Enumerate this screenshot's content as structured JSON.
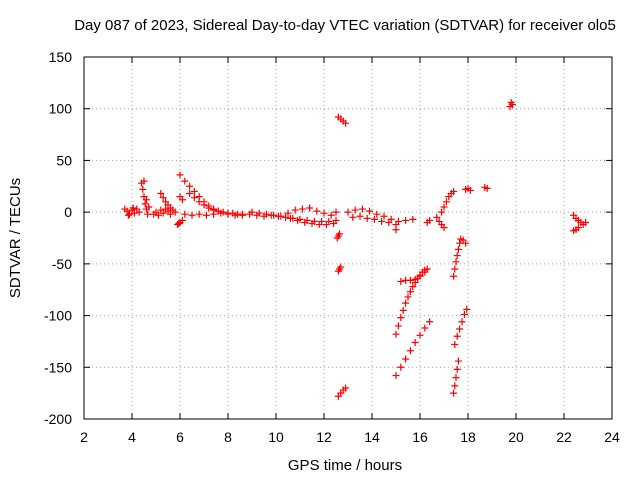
{
  "chart_data": {
    "type": "scatter",
    "title": "Day 087 of 2023, Sidereal Day-to-day VTEC variation (SDTVAR) for receiver olo5",
    "xlabel": "GPS time / hours",
    "ylabel": "SDTVAR / TECUs",
    "xlim": [
      2,
      24
    ],
    "ylim": [
      -200,
      150
    ],
    "xticks": [
      "2",
      "4",
      "6",
      "8",
      "10",
      "12",
      "14",
      "16",
      "18",
      "20",
      "22",
      "24"
    ],
    "yticks": [
      "150",
      "100",
      "50",
      "0",
      "-50",
      "-100",
      "-150",
      "-200"
    ],
    "grid": true,
    "marker": "+",
    "color": "#ff0000",
    "series": [
      {
        "name": "cluster-3.8",
        "points": [
          [
            3.7,
            3
          ],
          [
            3.8,
            1
          ],
          [
            3.9,
            -2
          ],
          [
            4.0,
            2
          ],
          [
            4.1,
            -1
          ],
          [
            4.2,
            3
          ],
          [
            4.3,
            0
          ],
          [
            3.85,
            -3
          ],
          [
            4.05,
            4
          ]
        ]
      },
      {
        "name": "cluster-4.5",
        "points": [
          [
            4.4,
            28
          ],
          [
            4.45,
            22
          ],
          [
            4.5,
            15
          ],
          [
            4.55,
            8
          ],
          [
            4.6,
            3
          ],
          [
            4.65,
            -2
          ],
          [
            4.5,
            30
          ],
          [
            4.6,
            12
          ],
          [
            4.7,
            5
          ]
        ]
      },
      {
        "name": "cluster-5.0",
        "points": [
          [
            4.9,
            -2
          ],
          [
            5.0,
            0
          ],
          [
            5.1,
            -3
          ],
          [
            5.2,
            2
          ],
          [
            5.3,
            -1
          ],
          [
            5.4,
            3
          ],
          [
            5.5,
            1
          ],
          [
            5.6,
            -2
          ]
        ]
      },
      {
        "name": "cluster-5.3",
        "points": [
          [
            5.2,
            18
          ],
          [
            5.3,
            14
          ],
          [
            5.4,
            10
          ],
          [
            5.5,
            7
          ],
          [
            5.6,
            4
          ],
          [
            5.7,
            2
          ],
          [
            5.8,
            0
          ]
        ]
      },
      {
        "name": "cluster-5.9",
        "points": [
          [
            5.9,
            -12
          ],
          [
            6.0,
            -10
          ],
          [
            6.1,
            -8
          ],
          [
            6.0,
            15
          ],
          [
            6.1,
            12
          ],
          [
            5.95,
            -11
          ]
        ]
      },
      {
        "name": "arc-6.0",
        "points": [
          [
            6.0,
            36
          ],
          [
            6.2,
            30
          ],
          [
            6.4,
            25
          ],
          [
            6.6,
            20
          ],
          [
            6.8,
            15
          ],
          [
            7.0,
            10
          ],
          [
            7.2,
            6
          ],
          [
            7.4,
            3
          ],
          [
            7.6,
            1
          ],
          [
            7.8,
            0
          ],
          [
            8.0,
            -1
          ],
          [
            8.2,
            -1
          ],
          [
            8.4,
            -2
          ],
          [
            8.6,
            -2
          ]
        ]
      },
      {
        "name": "arc-6.5",
        "points": [
          [
            6.4,
            18
          ],
          [
            6.6,
            14
          ],
          [
            6.8,
            10
          ],
          [
            7.0,
            7
          ],
          [
            7.2,
            4
          ],
          [
            7.4,
            2
          ],
          [
            7.6,
            1
          ]
        ]
      },
      {
        "name": "band-6-12",
        "points": [
          [
            6.2,
            -2
          ],
          [
            6.5,
            -3
          ],
          [
            6.8,
            -2
          ],
          [
            7.1,
            -3
          ],
          [
            7.4,
            -2
          ],
          [
            7.7,
            -1
          ],
          [
            8.0,
            -2
          ],
          [
            8.3,
            -3
          ],
          [
            8.6,
            -3
          ],
          [
            8.9,
            -2
          ],
          [
            9.2,
            -3
          ],
          [
            9.5,
            -4
          ],
          [
            9.8,
            -3
          ],
          [
            10.1,
            -4
          ],
          [
            10.4,
            -5
          ],
          [
            10.7,
            -6
          ],
          [
            11.0,
            -7
          ],
          [
            11.3,
            -8
          ],
          [
            11.6,
            -9
          ],
          [
            11.9,
            -9
          ],
          [
            12.2,
            -9
          ],
          [
            12.5,
            -8
          ]
        ]
      },
      {
        "name": "band-9-11",
        "points": [
          [
            9.0,
            0
          ],
          [
            9.3,
            -1
          ],
          [
            9.6,
            -2
          ],
          [
            9.9,
            -3
          ],
          [
            10.2,
            -4
          ],
          [
            10.5,
            -1
          ],
          [
            10.8,
            2
          ],
          [
            11.1,
            3
          ],
          [
            11.4,
            4
          ],
          [
            11.7,
            1
          ],
          [
            12.0,
            -1
          ],
          [
            12.3,
            -3
          ],
          [
            12.5,
            0
          ]
        ]
      },
      {
        "name": "band-10-12-low",
        "points": [
          [
            10.6,
            -6
          ],
          [
            10.9,
            -8
          ],
          [
            11.2,
            -10
          ],
          [
            11.5,
            -11
          ],
          [
            11.8,
            -12
          ],
          [
            12.1,
            -12
          ],
          [
            12.4,
            -11
          ]
        ]
      },
      {
        "name": "sub-12.6",
        "points": [
          [
            12.55,
            -25
          ],
          [
            12.6,
            -23
          ],
          [
            12.65,
            -21
          ],
          [
            12.6,
            -57
          ],
          [
            12.65,
            -55
          ],
          [
            12.7,
            -53
          ],
          [
            12.6,
            -178
          ],
          [
            12.7,
            -175
          ],
          [
            12.8,
            -172
          ],
          [
            12.9,
            -170
          ]
        ]
      },
      {
        "name": "high-12.8",
        "points": [
          [
            12.6,
            92
          ],
          [
            12.7,
            90
          ],
          [
            12.8,
            88
          ],
          [
            12.9,
            86
          ]
        ]
      },
      {
        "name": "band-13-15",
        "points": [
          [
            13.0,
            0
          ],
          [
            13.3,
            2
          ],
          [
            13.6,
            3
          ],
          [
            13.9,
            1
          ],
          [
            14.2,
            -2
          ],
          [
            14.5,
            -4
          ],
          [
            14.8,
            -7
          ],
          [
            15.1,
            -9
          ],
          [
            15.4,
            -8
          ],
          [
            15.7,
            -7
          ],
          [
            13.2,
            -5
          ],
          [
            13.5,
            -4
          ],
          [
            13.8,
            -6
          ],
          [
            14.1,
            -7
          ],
          [
            14.4,
            -9
          ],
          [
            14.7,
            -10
          ],
          [
            15.0,
            -12
          ],
          [
            15.0,
            -17
          ]
        ]
      },
      {
        "name": "steep-15-a",
        "points": [
          [
            15.0,
            -118
          ],
          [
            15.1,
            -110
          ],
          [
            15.2,
            -102
          ],
          [
            15.3,
            -95
          ],
          [
            15.4,
            -88
          ],
          [
            15.5,
            -82
          ],
          [
            15.6,
            -77
          ],
          [
            15.7,
            -72
          ],
          [
            15.8,
            -68
          ],
          [
            15.9,
            -64
          ],
          [
            16.0,
            -61
          ],
          [
            16.1,
            -58
          ],
          [
            16.2,
            -56
          ]
        ]
      },
      {
        "name": "cluster-15.6",
        "points": [
          [
            15.2,
            -67
          ],
          [
            15.4,
            -66
          ],
          [
            15.6,
            -66
          ],
          [
            15.8,
            -65
          ],
          [
            16.0,
            -62
          ],
          [
            16.2,
            -58
          ],
          [
            16.3,
            -55
          ]
        ]
      },
      {
        "name": "steep-15-b",
        "points": [
          [
            15.0,
            -158
          ],
          [
            15.2,
            -150
          ],
          [
            15.4,
            -142
          ],
          [
            15.6,
            -134
          ],
          [
            15.8,
            -126
          ],
          [
            16.0,
            -119
          ],
          [
            16.2,
            -112
          ],
          [
            16.4,
            -106
          ]
        ]
      },
      {
        "name": "cluster-16.4",
        "points": [
          [
            16.3,
            -10
          ],
          [
            16.4,
            -8
          ],
          [
            16.7,
            -5
          ],
          [
            16.9,
            0
          ],
          [
            17.0,
            5
          ],
          [
            17.1,
            10
          ],
          [
            17.2,
            15
          ],
          [
            17.3,
            18
          ],
          [
            17.4,
            20
          ],
          [
            16.8,
            -9
          ],
          [
            16.9,
            -12
          ],
          [
            17.0,
            -15
          ]
        ]
      },
      {
        "name": "steep-17.4",
        "points": [
          [
            17.4,
            -62
          ],
          [
            17.45,
            -55
          ],
          [
            17.5,
            -48
          ],
          [
            17.55,
            -42
          ],
          [
            17.6,
            -36
          ],
          [
            17.65,
            -30
          ],
          [
            17.7,
            -26
          ],
          [
            17.8,
            -27
          ],
          [
            17.9,
            -30
          ]
        ]
      },
      {
        "name": "steep-17.5",
        "points": [
          [
            17.45,
            -128
          ],
          [
            17.55,
            -120
          ],
          [
            17.65,
            -113
          ],
          [
            17.75,
            -106
          ],
          [
            17.85,
            -99
          ],
          [
            17.95,
            -94
          ]
        ]
      },
      {
        "name": "steep-17.5-low",
        "points": [
          [
            17.4,
            -175
          ],
          [
            17.45,
            -168
          ],
          [
            17.5,
            -160
          ],
          [
            17.55,
            -152
          ],
          [
            17.6,
            -144
          ]
        ]
      },
      {
        "name": "cluster-18",
        "points": [
          [
            17.9,
            22
          ],
          [
            18.0,
            23
          ],
          [
            18.1,
            21
          ],
          [
            18.7,
            24
          ],
          [
            18.8,
            23
          ]
        ]
      },
      {
        "name": "high-19.8",
        "points": [
          [
            19.75,
            102
          ],
          [
            19.85,
            104
          ],
          [
            19.8,
            106
          ]
        ]
      },
      {
        "name": "cluster-22.5",
        "points": [
          [
            22.4,
            -3
          ],
          [
            22.5,
            -6
          ],
          [
            22.6,
            -8
          ],
          [
            22.7,
            -10
          ],
          [
            22.8,
            -12
          ],
          [
            22.9,
            -10
          ],
          [
            22.6,
            -15
          ],
          [
            22.5,
            -17
          ],
          [
            22.4,
            -18
          ]
        ]
      }
    ]
  }
}
